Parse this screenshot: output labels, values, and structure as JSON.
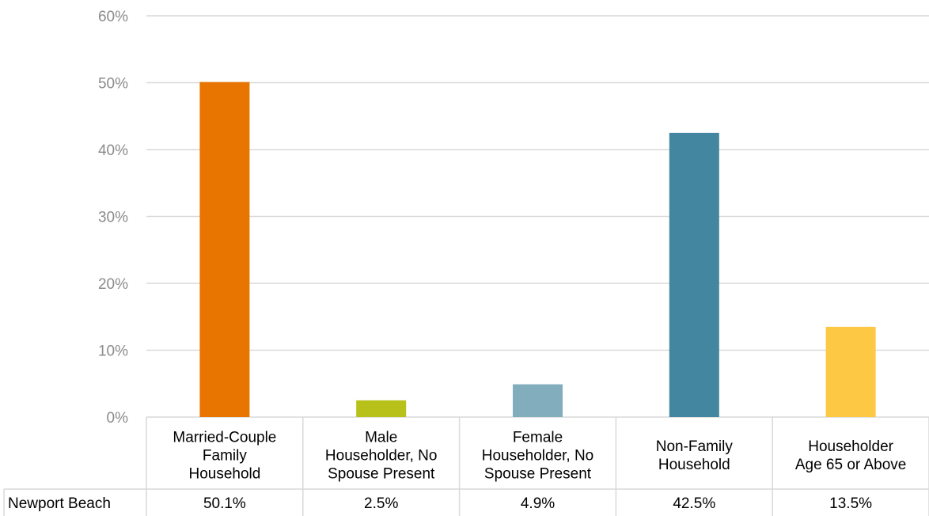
{
  "chart_data": {
    "type": "bar",
    "categories": [
      [
        "Married-Couple",
        "Family",
        "Household"
      ],
      [
        "Male",
        "Householder, No",
        "Spouse Present"
      ],
      [
        "Female",
        "Householder, No",
        "Spouse Present"
      ],
      [
        "Non-Family",
        "Household"
      ],
      [
        "Householder",
        "Age 65 or Above"
      ]
    ],
    "series": [
      {
        "name": "Newport Beach",
        "values": [
          50.1,
          2.5,
          4.9,
          42.5,
          13.5
        ],
        "labels": [
          "50.1%",
          "2.5%",
          "4.9%",
          "42.5%",
          "13.5%"
        ]
      }
    ],
    "colors": [
      "#e87500",
      "#b8c11a",
      "#82adbd",
      "#43869f",
      "#fdc843"
    ],
    "ylim": [
      0,
      60
    ],
    "yticks": [
      "0%",
      "10%",
      "20%",
      "30%",
      "40%",
      "50%",
      "60%"
    ],
    "grid": true,
    "data_table": true
  }
}
